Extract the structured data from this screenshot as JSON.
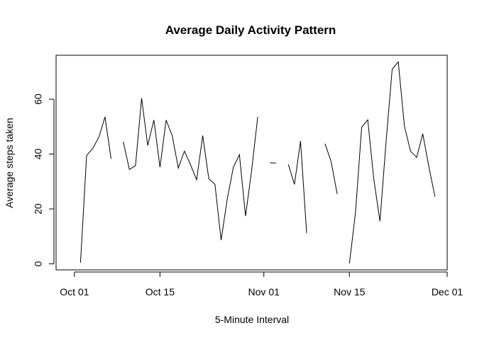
{
  "chart_data": {
    "type": "line",
    "title": "Average Daily Activity Pattern",
    "xlabel": "5-Minute Interval",
    "ylabel": "Average steps taken",
    "x_ticks": [
      "Oct 01",
      "Oct 15",
      "Nov 01",
      "Nov 15",
      "Dec 01"
    ],
    "y_ticks": [
      0,
      20,
      40,
      60
    ],
    "xlim": [
      "2012-09-28",
      "2012-12-01"
    ],
    "ylim": [
      -2.2,
      76
    ],
    "grid": false,
    "legend": "none",
    "series": [
      {
        "x": [
          "2012-10-01",
          "2012-10-02",
          "2012-10-03",
          "2012-10-04",
          "2012-10-05",
          "2012-10-06",
          "2012-10-07",
          "2012-10-08",
          "2012-10-09",
          "2012-10-10",
          "2012-10-11",
          "2012-10-12",
          "2012-10-13",
          "2012-10-14",
          "2012-10-15",
          "2012-10-16",
          "2012-10-17",
          "2012-10-18",
          "2012-10-19",
          "2012-10-20",
          "2012-10-21",
          "2012-10-22",
          "2012-10-23",
          "2012-10-24",
          "2012-10-25",
          "2012-10-26",
          "2012-10-27",
          "2012-10-28",
          "2012-10-29",
          "2012-10-30",
          "2012-10-31",
          "2012-11-01",
          "2012-11-02",
          "2012-11-03",
          "2012-11-04",
          "2012-11-05",
          "2012-11-06",
          "2012-11-07",
          "2012-11-08",
          "2012-11-09",
          "2012-11-10",
          "2012-11-11",
          "2012-11-12",
          "2012-11-13",
          "2012-11-14",
          "2012-11-15",
          "2012-11-16",
          "2012-11-17",
          "2012-11-18",
          "2012-11-19",
          "2012-11-20",
          "2012-11-21",
          "2012-11-22",
          "2012-11-23",
          "2012-11-24",
          "2012-11-25",
          "2012-11-26",
          "2012-11-27",
          "2012-11-28",
          "2012-11-29",
          "2012-11-30"
        ],
        "values": [
          null,
          0.44,
          39.42,
          42.07,
          46.16,
          53.54,
          38.25,
          null,
          44.48,
          34.38,
          35.78,
          60.35,
          43.15,
          52.42,
          35.2,
          52.38,
          46.71,
          34.92,
          41.07,
          36.09,
          30.63,
          46.74,
          30.97,
          29.01,
          8.65,
          23.53,
          35.14,
          39.78,
          17.42,
          34.09,
          53.52,
          null,
          36.81,
          36.7,
          null,
          36.25,
          28.94,
          44.73,
          11.18,
          null,
          null,
          43.78,
          37.38,
          25.47,
          null,
          0.14,
          18.89,
          49.79,
          52.47,
          30.7,
          15.53,
          44.4,
          70.93,
          73.59,
          50.27,
          41.09,
          38.76,
          47.38,
          35.36,
          24.47,
          null
        ]
      }
    ]
  }
}
